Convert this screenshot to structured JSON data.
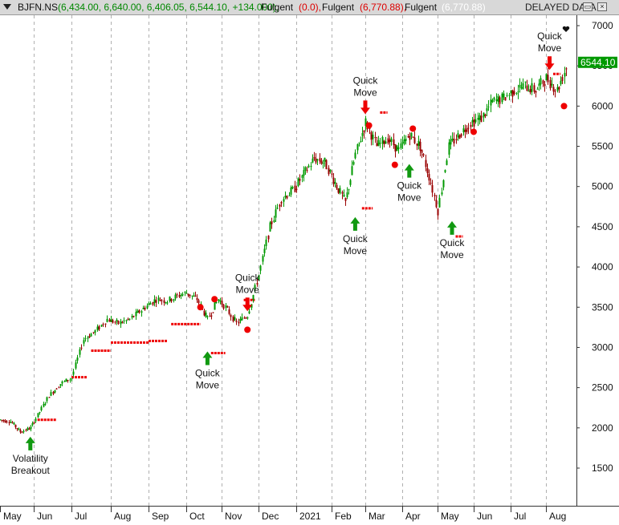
{
  "titlebar": {
    "symbol": "BJFN.NS",
    "ohlc": "(6,434.00, 6,640.00, 6,406.05, 6,544.10, +134.000),",
    "ind1_name": "Fulgent",
    "ind1_value": "(0.0),",
    "ind2_name": "Fulgent",
    "ind2_value": "(6,770.88),",
    "ind3_name": "Fulgent",
    "ind3_value": "(6,770.88)",
    "delayed": "DELAYED DATA",
    "colors": {
      "ohlc": "#008800",
      "ind1": "#dd0000",
      "ind2": "#dd0000",
      "ind3": "#ffffff"
    }
  },
  "window_buttons": {
    "restore_icon": "restore-icon",
    "close_icon": "close-icon"
  },
  "chart_data": {
    "type": "candlestick",
    "ylim": [
      1200,
      7300
    ],
    "yticks": [
      1500,
      2000,
      2500,
      3000,
      3500,
      4000,
      4500,
      5000,
      5500,
      6000,
      6500,
      7000
    ],
    "xlabels": [
      "May",
      "Jun",
      "Jul",
      "Aug",
      "Sep",
      "Oct",
      "Nov",
      "Dec",
      "2021",
      "Feb",
      "Mar",
      "Apr",
      "May",
      "Jun",
      "Jul",
      "Aug"
    ],
    "last_price": "6544.10",
    "grid": "vertical-dashed",
    "series": [
      {
        "points": [
          [
            0,
            2100
          ],
          [
            0.3,
            2080
          ],
          [
            0.6,
            1950
          ],
          [
            0.9,
            2000
          ],
          [
            1.0,
            2080
          ],
          [
            1.4,
            2400
          ],
          [
            1.7,
            2550
          ],
          [
            2.0,
            2620
          ],
          [
            2.3,
            3100
          ],
          [
            2.6,
            3200
          ],
          [
            2.9,
            3350
          ],
          [
            3.2,
            3300
          ],
          [
            3.5,
            3350
          ],
          [
            3.9,
            3500
          ],
          [
            4.2,
            3600
          ],
          [
            4.5,
            3580
          ],
          [
            4.8,
            3650
          ],
          [
            5.0,
            3680
          ],
          [
            5.3,
            3600
          ],
          [
            5.6,
            3350
          ],
          [
            5.9,
            3600
          ],
          [
            6.1,
            3500
          ],
          [
            6.4,
            3300
          ],
          [
            6.7,
            3400
          ],
          [
            7.0,
            3900
          ],
          [
            7.3,
            4500
          ],
          [
            7.6,
            4850
          ],
          [
            7.9,
            4950
          ],
          [
            8.2,
            5150
          ],
          [
            8.5,
            5350
          ],
          [
            8.8,
            5300
          ],
          [
            9.1,
            5050
          ],
          [
            9.4,
            4800
          ],
          [
            9.7,
            5400
          ],
          [
            10.0,
            5800
          ],
          [
            10.3,
            5500
          ],
          [
            10.6,
            5600
          ],
          [
            10.9,
            5450
          ],
          [
            11.2,
            5650
          ],
          [
            11.5,
            5500
          ],
          [
            11.8,
            5050
          ],
          [
            12.0,
            4700
          ],
          [
            12.3,
            5500
          ],
          [
            12.6,
            5650
          ],
          [
            12.9,
            5800
          ],
          [
            13.2,
            5850
          ],
          [
            13.5,
            6050
          ],
          [
            13.8,
            6100
          ],
          [
            14.1,
            6200
          ],
          [
            14.4,
            6250
          ],
          [
            14.7,
            6200
          ],
          [
            15.0,
            6350
          ],
          [
            15.3,
            6200
          ],
          [
            15.6,
            6544.1
          ]
        ]
      }
    ],
    "annotations": [
      {
        "text": [
          "Volatility",
          "Breakout"
        ],
        "month": 0.9,
        "price": 1890,
        "dir": "up"
      },
      {
        "text": [
          "Quick",
          "Move"
        ],
        "month": 5.6,
        "price": 2950,
        "dir": "up"
      },
      {
        "text": [
          "Quick",
          "Move"
        ],
        "month": 6.7,
        "price": 3450,
        "dir": "down"
      },
      {
        "text": [
          "Quick",
          "Move"
        ],
        "month": 9.7,
        "price": 4620,
        "dir": "up"
      },
      {
        "text": [
          "Quick",
          "Move"
        ],
        "month": 10.0,
        "price": 5900,
        "dir": "down"
      },
      {
        "text": [
          "Quick",
          "Move"
        ],
        "month": 11.2,
        "price": 5280,
        "dir": "up"
      },
      {
        "text": [
          "Quick",
          "Move"
        ],
        "month": 12.4,
        "price": 4570,
        "dir": "up"
      },
      {
        "text": [
          "Quick",
          "Move"
        ],
        "month": 15.1,
        "price": 6450,
        "dir": "down"
      }
    ],
    "stop_lines": [
      {
        "from": 1.1,
        "to": 1.6,
        "price": 2100
      },
      {
        "from": 2.0,
        "to": 2.4,
        "price": 2630
      },
      {
        "from": 2.5,
        "to": 3.0,
        "price": 2960
      },
      {
        "from": 3.0,
        "to": 4.0,
        "price": 3060
      },
      {
        "from": 4.0,
        "to": 4.5,
        "price": 3080
      },
      {
        "from": 4.6,
        "to": 5.4,
        "price": 3290
      },
      {
        "from": 5.7,
        "to": 6.1,
        "price": 2930
      },
      {
        "from": 6.6,
        "to": 6.9,
        "price": 3590
      },
      {
        "from": 9.9,
        "to": 10.2,
        "price": 4730
      },
      {
        "from": 10.4,
        "to": 10.6,
        "price": 5920
      },
      {
        "from": 12.5,
        "to": 12.7,
        "price": 4380
      },
      {
        "from": 15.2,
        "to": 15.4,
        "price": 6400
      }
    ],
    "dots": [
      {
        "month": 5.4,
        "price": 3500
      },
      {
        "month": 5.8,
        "price": 3600
      },
      {
        "month": 6.7,
        "price": 3220
      },
      {
        "month": 10.1,
        "price": 5760
      },
      {
        "month": 10.8,
        "price": 5270
      },
      {
        "month": 11.3,
        "price": 5720
      },
      {
        "month": 13.0,
        "price": 5680
      },
      {
        "month": 15.5,
        "price": 6000
      }
    ]
  }
}
